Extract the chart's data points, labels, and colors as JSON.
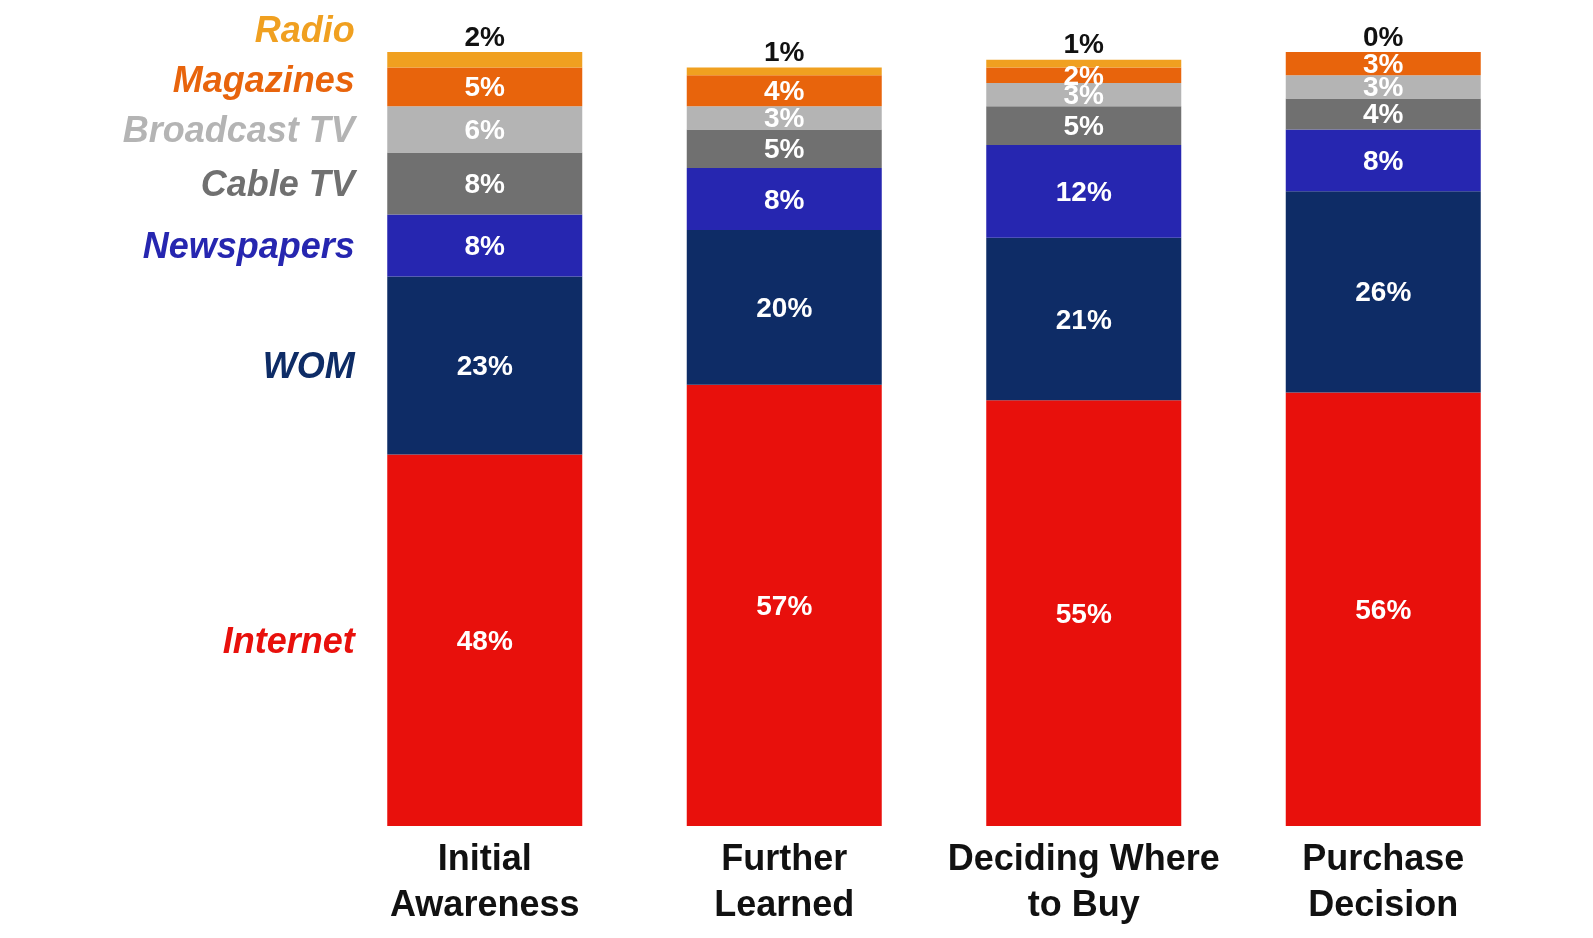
{
  "chart_data": {
    "type": "bar",
    "stacked": true,
    "legend": "left",
    "tick_labels": "x",
    "categories": [
      "Initial Awareness",
      "Further Learned",
      "Deciding Where to Buy",
      "Purchase Decision"
    ],
    "series": [
      {
        "name": "Internet",
        "color": "#e8100c",
        "values": [
          48,
          57,
          55,
          56
        ],
        "value_labels": [
          "48%",
          "57%",
          "55%",
          "56%"
        ]
      },
      {
        "name": "WOM",
        "color": "#0e2c66",
        "values": [
          23,
          20,
          21,
          26
        ],
        "value_labels": [
          "23%",
          "20%",
          "21%",
          "26%"
        ]
      },
      {
        "name": "Newspapers",
        "color": "#2626b0",
        "values": [
          8,
          8,
          12,
          8
        ],
        "value_labels": [
          "8%",
          "8%",
          "12%",
          "8%"
        ]
      },
      {
        "name": "Cable TV",
        "color": "#707070",
        "values": [
          8,
          5,
          5,
          4
        ],
        "value_labels": [
          "8%",
          "5%",
          "5%",
          "4%"
        ]
      },
      {
        "name": "Broadcast TV",
        "color": "#b4b4b4",
        "values": [
          6,
          3,
          3,
          3
        ],
        "value_labels": [
          "6%",
          "3%",
          "3%",
          "3%"
        ]
      },
      {
        "name": "Magazines",
        "color": "#e8640c",
        "values": [
          5,
          4,
          2,
          3
        ],
        "value_labels": [
          "5%",
          "4%",
          "2%",
          "3%"
        ]
      },
      {
        "name": "Radio",
        "color": "#f0a020",
        "values": [
          2,
          1,
          1,
          0
        ],
        "value_labels": [
          "2%",
          "1%",
          "1%",
          "0%"
        ]
      }
    ]
  }
}
